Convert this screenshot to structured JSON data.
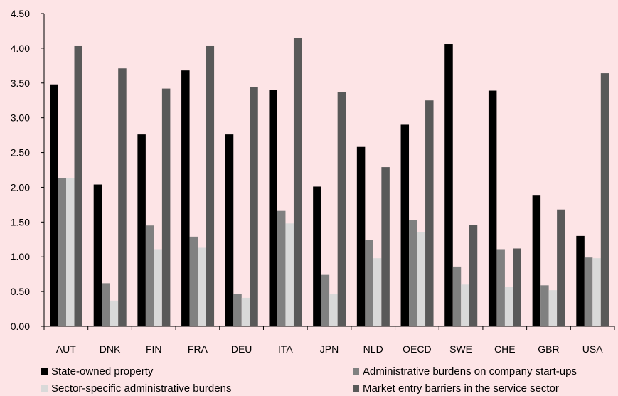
{
  "chart_data": {
    "type": "bar",
    "title": "",
    "xlabel": "",
    "ylabel": "",
    "ylim": [
      0,
      4.5
    ],
    "yticks": [
      "0.00",
      "0.50",
      "1.00",
      "1.50",
      "2.00",
      "2.50",
      "3.00",
      "3.50",
      "4.00",
      "4.50"
    ],
    "categories": [
      "AUT",
      "DNK",
      "FIN",
      "FRA",
      "DEU",
      "ITA",
      "JPN",
      "NLD",
      "OECD",
      "SWE",
      "CHE",
      "GBR",
      "USA"
    ],
    "series": [
      {
        "name": "State-owned property",
        "color": "#000000",
        "values": [
          3.48,
          2.04,
          2.76,
          3.68,
          2.76,
          3.4,
          2.01,
          2.58,
          2.9,
          4.06,
          3.39,
          1.89,
          1.3
        ]
      },
      {
        "name": "Administrative burdens on company start-ups",
        "color": "#808080",
        "values": [
          2.13,
          0.62,
          1.45,
          1.29,
          0.47,
          1.66,
          0.74,
          1.24,
          1.53,
          0.86,
          1.11,
          0.59,
          0.99
        ]
      },
      {
        "name": "Sector-specific administrative burdens",
        "color": "#d9d9d9",
        "values": [
          2.13,
          0.37,
          1.11,
          1.13,
          0.41,
          1.48,
          0.46,
          0.98,
          1.35,
          0.6,
          0.57,
          0.52,
          0.98
        ]
      },
      {
        "name": "Market entry barriers in the service sector",
        "color": "#595959",
        "values": [
          4.04,
          3.71,
          3.42,
          4.04,
          3.44,
          4.15,
          3.37,
          2.29,
          3.25,
          1.46,
          1.12,
          1.68,
          3.64
        ]
      }
    ],
    "legend_position": "bottom",
    "grid": false
  }
}
